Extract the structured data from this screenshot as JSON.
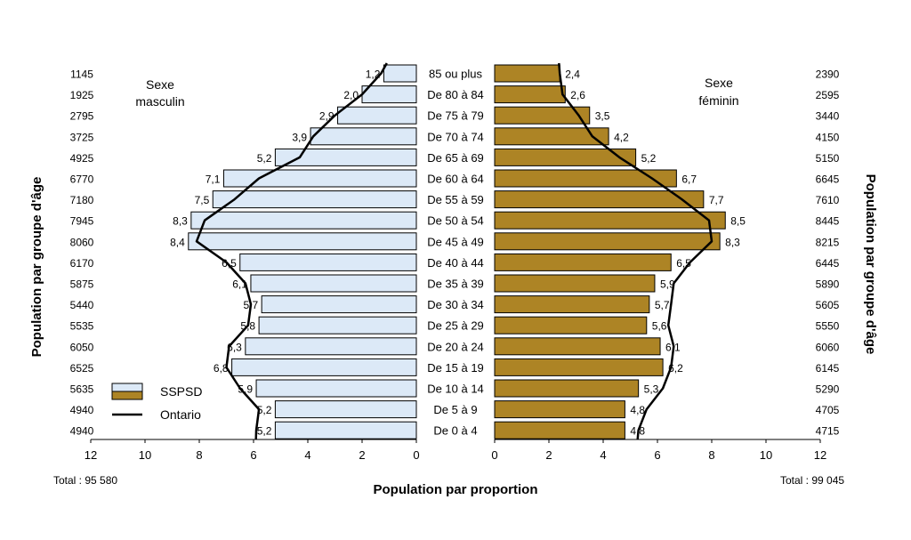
{
  "chart_data": {
    "type": "bar",
    "orientation": "horizontal-population-pyramid",
    "categories": [
      "85 ou plus",
      "De 80 à 84",
      "De 75 à 79",
      "De 70 à 74",
      "De 65 à 69",
      "De 60 à 64",
      "De 55 à 59",
      "De 50 à 54",
      "De 45 à 49",
      "De 40 à 44",
      "De 35 à 39",
      "De 30 à 34",
      "De 25 à 29",
      "De 20 à 24",
      "De 15 à 19",
      "De 10 à 14",
      "De 5 à 9",
      "De 0 à 4"
    ],
    "male": {
      "label": "Sexe masculin",
      "values": [
        1.2,
        2.0,
        2.9,
        3.9,
        5.2,
        7.1,
        7.5,
        8.3,
        8.4,
        6.5,
        6.1,
        5.7,
        5.8,
        6.3,
        6.8,
        5.9,
        5.2,
        5.2
      ],
      "value_labels": [
        "1,2",
        "2,0",
        "2,9",
        "3,9",
        "5,2",
        "7,1",
        "7,5",
        "8,3",
        "8,4",
        "6,5",
        "6,1",
        "5,7",
        "5,8",
        "6,3",
        "6,8",
        "5,9",
        "5,2",
        "5,2"
      ],
      "counts": [
        "1145",
        "1925",
        "2795",
        "3725",
        "4925",
        "6770",
        "7180",
        "7945",
        "8060",
        "6170",
        "5875",
        "5440",
        "5535",
        "6050",
        "6525",
        "5635",
        "4940",
        "4940"
      ],
      "ontario": [
        1.3,
        2.0,
        3.0,
        3.8,
        4.3,
        5.8,
        6.7,
        7.8,
        8.1,
        7.0,
        6.3,
        6.1,
        6.2,
        6.9,
        7.0,
        6.5,
        5.8,
        5.9
      ],
      "total": "Total : 95 580"
    },
    "female": {
      "label": "Sexe féminin",
      "values": [
        2.4,
        2.6,
        3.5,
        4.2,
        5.2,
        6.7,
        7.7,
        8.5,
        8.3,
        6.5,
        5.9,
        5.7,
        5.6,
        6.1,
        6.2,
        5.3,
        4.8,
        4.8
      ],
      "value_labels": [
        "2,4",
        "2,6",
        "3,5",
        "4,2",
        "5,2",
        "6,7",
        "7,7",
        "8,5",
        "8,3",
        "6,5",
        "5,9",
        "5,7",
        "5,6",
        "6,1",
        "6,2",
        "5,3",
        "4,8",
        "4,8"
      ],
      "counts": [
        "2390",
        "2595",
        "3440",
        "4150",
        "5150",
        "6645",
        "7610",
        "8445",
        "8215",
        "6445",
        "5890",
        "5605",
        "5550",
        "6060",
        "6145",
        "5290",
        "4705",
        "4715"
      ],
      "ontario": [
        2.4,
        2.5,
        3.1,
        3.6,
        4.6,
        5.8,
        6.9,
        7.9,
        8.0,
        7.2,
        6.6,
        6.5,
        6.4,
        6.6,
        6.5,
        6.2,
        5.6,
        5.3
      ],
      "total": "Total : 99 045"
    },
    "axis_ticks_left": [
      "12",
      "10",
      "8",
      "6",
      "4",
      "2",
      "0"
    ],
    "axis_ticks_right": [
      "0",
      "2",
      "4",
      "6",
      "8",
      "10",
      "12"
    ],
    "xlim": [
      0,
      12
    ],
    "xlabel": "Population par proportion",
    "ylabel": "Population par groupe d'âge",
    "legend": {
      "position": "bottom-left",
      "items": [
        {
          "name": "SSPSD",
          "kind": "bar"
        },
        {
          "name": "Ontario",
          "kind": "line"
        }
      ]
    },
    "colors": {
      "male_fill": "#dce9f7",
      "female_fill": "#ad8425",
      "bar_stroke": "#000000",
      "line": "#000000"
    }
  }
}
